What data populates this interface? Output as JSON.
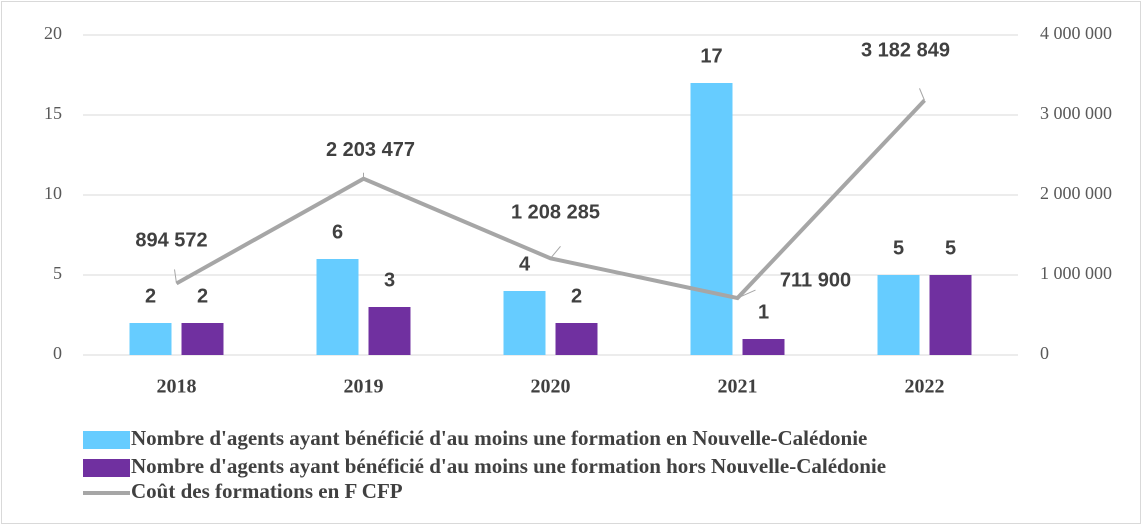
{
  "chart_data": {
    "type": "bar_line",
    "categories": [
      "2018",
      "2019",
      "2020",
      "2021",
      "2022"
    ],
    "series": [
      {
        "name": "Nombre d'agents ayant bénéficié d'au moins une formation en Nouvelle-Calédonie",
        "color": "#66ccff",
        "type": "bar",
        "axis": "y",
        "values": [
          2,
          6,
          4,
          17,
          5
        ]
      },
      {
        "name": "Nombre d'agents ayant bénéficié d'au moins une formation hors Nouvelle-Calédonie",
        "color": "#7030a0",
        "type": "bar",
        "axis": "y",
        "values": [
          2,
          3,
          2,
          1,
          5
        ]
      },
      {
        "name": "Coût des formations en F CFP",
        "color": "#a6a6a6",
        "type": "line",
        "axis": "y2",
        "values": [
          894572,
          2203477,
          1208285,
          711900,
          3182849
        ],
        "value_labels": [
          "894 572",
          "2 203 477",
          "1 208 285",
          "711 900",
          "3 182 849"
        ]
      }
    ],
    "ylim": [
      0,
      20
    ],
    "yticks": [
      0,
      5,
      10,
      15,
      20
    ],
    "y2lim": [
      0,
      4000000
    ],
    "y2ticks": [
      0,
      {
        "value": 1000000,
        "label": "1 000 000"
      },
      {
        "value": 2000000,
        "label": "2 000 000"
      },
      {
        "value": 3000000,
        "label": "3 000 000"
      },
      {
        "value": 4000000,
        "label": "4 000 000"
      }
    ],
    "grid": true,
    "legend": "bottom"
  }
}
